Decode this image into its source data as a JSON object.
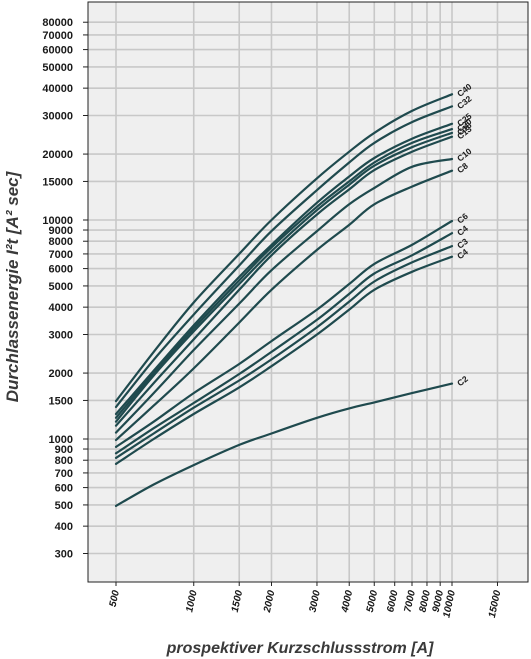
{
  "chart_data": {
    "type": "line",
    "xlabel": "prospektiver Kurzschlussstrom [A]",
    "ylabel": "Durchlassenergie I²t [A² sec]",
    "x_scale": "log",
    "y_scale": "log",
    "xlim": [
      500,
      20000
    ],
    "ylim": [
      230,
      100000
    ],
    "grid": true,
    "x_ticks": [
      500,
      1000,
      1500,
      2000,
      3000,
      4000,
      5000,
      6000,
      7000,
      8000,
      9000,
      10000,
      15000
    ],
    "x_tick_labels": [
      "500",
      "1000",
      "1500",
      "2000",
      "3000",
      "4000",
      "5000",
      "6000",
      "7000",
      "8000",
      "9000",
      "10000",
      "15000"
    ],
    "y_ticks": [
      300,
      400,
      500,
      600,
      700,
      800,
      900,
      1000,
      1500,
      2000,
      3000,
      4000,
      5000,
      6000,
      7000,
      8000,
      9000,
      10000,
      15000,
      20000,
      30000,
      40000,
      50000,
      60000,
      70000,
      80000
    ],
    "y_tick_labels": [
      "300",
      "400",
      "500",
      "600",
      "700",
      "800",
      "900",
      "1000",
      "1500",
      "2000",
      "3000",
      "4000",
      "5000",
      "6000",
      "7000",
      "8000",
      "9000",
      "10000",
      "15000",
      "20000",
      "30000",
      "40000",
      "50000",
      "60000",
      "70000",
      "80000"
    ],
    "x": [
      500,
      700,
      1000,
      1500,
      2000,
      3000,
      4000,
      5000,
      7000,
      10000
    ],
    "series": [
      {
        "name": "C40",
        "values": [
          1490,
          2500,
          4200,
          7000,
          10000,
          15500,
          20500,
          25000,
          31500,
          37500
        ]
      },
      {
        "name": "C32",
        "values": [
          1400,
          2300,
          3700,
          6200,
          8900,
          13700,
          18300,
          22500,
          28000,
          33000
        ]
      },
      {
        "name": "C25",
        "values": [
          1300,
          2050,
          3300,
          5500,
          7700,
          12000,
          15800,
          19200,
          23500,
          27500
        ]
      },
      {
        "name": "C20",
        "values": [
          1250,
          2000,
          3200,
          5300,
          7500,
          11500,
          15000,
          18300,
          22500,
          26000
        ]
      },
      {
        "name": "C16",
        "values": [
          1200,
          1950,
          3100,
          5100,
          7200,
          11100,
          14500,
          17700,
          21500,
          25000
        ]
      },
      {
        "name": "C13",
        "values": [
          1150,
          1800,
          2850,
          4800,
          6900,
          10600,
          13800,
          16900,
          20500,
          24000
        ]
      },
      {
        "name": "C10",
        "values": [
          1070,
          1620,
          2550,
          4150,
          5900,
          8900,
          11800,
          14000,
          17500,
          19000
        ]
      },
      {
        "name": "C8",
        "values": [
          990,
          1420,
          2100,
          3400,
          4800,
          7300,
          9500,
          11800,
          14200,
          16800
        ]
      },
      {
        "name": "C6",
        "values": [
          920,
          1200,
          1620,
          2200,
          2800,
          3900,
          5100,
          6300,
          7700,
          9900
        ]
      },
      {
        "name": "C4",
        "values": [
          860,
          1120,
          1460,
          1980,
          2500,
          3500,
          4600,
          5700,
          6900,
          8700
        ]
      },
      {
        "name": "C3",
        "values": [
          820,
          1060,
          1390,
          1850,
          2310,
          3240,
          4240,
          5240,
          6400,
          7600
        ]
      },
      {
        "name": "C4",
        "values": [
          770,
          1000,
          1300,
          1720,
          2150,
          3000,
          3900,
          4800,
          5800,
          6800
        ]
      },
      {
        "name": "C2",
        "values": [
          495,
          620,
          760,
          940,
          1060,
          1250,
          1380,
          1470,
          1620,
          1790
        ]
      }
    ]
  }
}
